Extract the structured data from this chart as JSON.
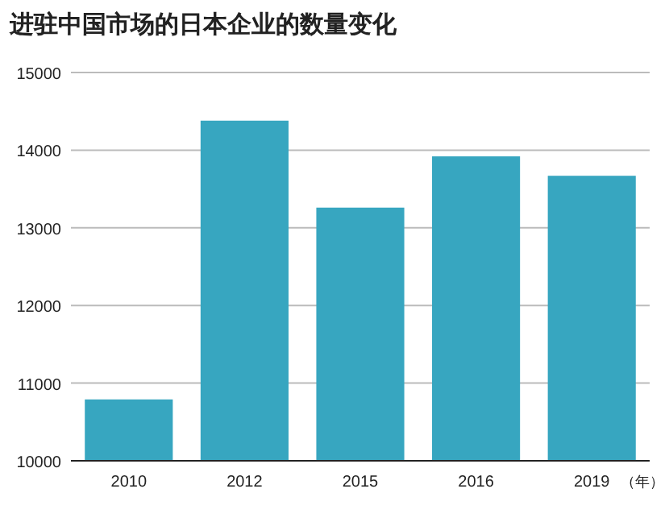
{
  "chart_data": {
    "type": "bar",
    "title": "进驻中国市场的日本企业的数量变化",
    "xlabel": "（年）",
    "categories": [
      "2010",
      "2012",
      "2015",
      "2016",
      "2019"
    ],
    "values": [
      10790,
      14380,
      13260,
      13920,
      13670
    ],
    "color": "#37a6c0",
    "ylim": [
      10000,
      15000
    ],
    "yticks": [
      10000,
      11000,
      12000,
      13000,
      14000,
      15000
    ],
    "grid": "y"
  }
}
